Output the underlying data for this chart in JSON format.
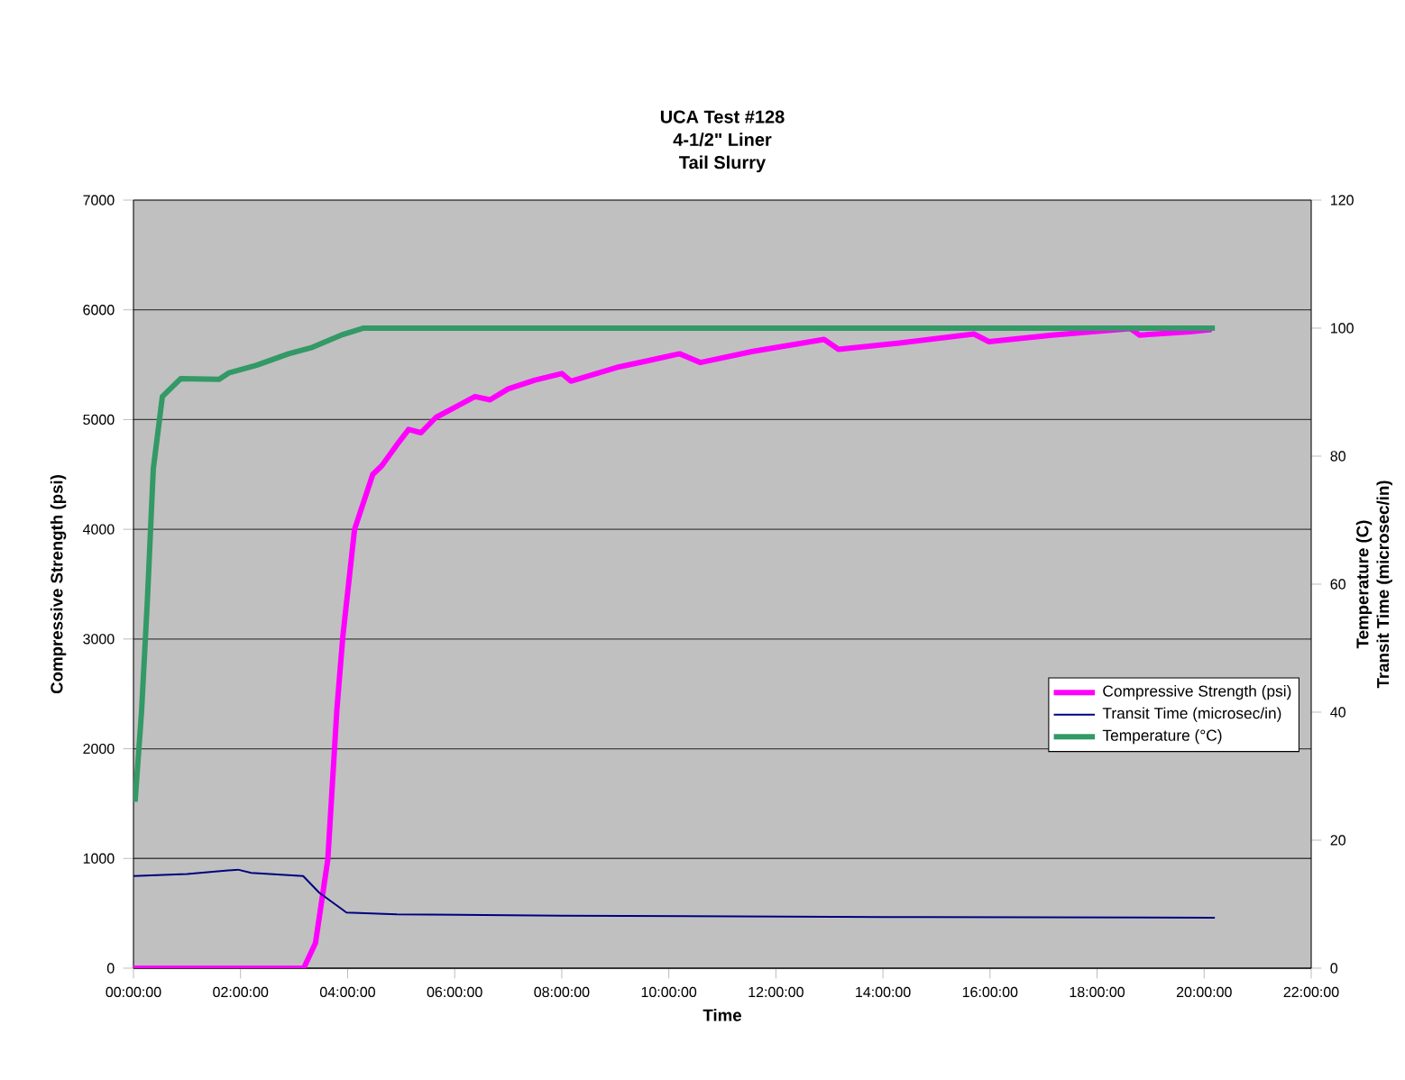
{
  "chart_data": {
    "type": "line",
    "title": "UCA Test #128",
    "subtitle": "4-1/2\" Liner Tail Slurry",
    "xlabel": "Time",
    "ylabel": "Compressive Strength (psi)",
    "y2label": "Temperature (C) Transit Time (microsec/in)",
    "xlim": [
      0,
      22
    ],
    "xticks": [
      {
        "value": 0,
        "label": "00:00:00"
      },
      {
        "value": 2,
        "label": "02:00:00"
      },
      {
        "value": 4,
        "label": "04:00:00"
      },
      {
        "value": 6,
        "label": "06:00:00"
      },
      {
        "value": 8,
        "label": "08:00:00"
      },
      {
        "value": 10,
        "label": "10:00:00"
      },
      {
        "value": 12,
        "label": "12:00:00"
      },
      {
        "value": 14,
        "label": "14:00:00"
      },
      {
        "value": 16,
        "label": "16:00:00"
      },
      {
        "value": 18,
        "label": "18:00:00"
      },
      {
        "value": 20,
        "label": "20:00:00"
      },
      {
        "value": 22,
        "label": "22:00:00"
      }
    ],
    "ylim": [
      0,
      7000
    ],
    "yticks": [
      0,
      1000,
      2000,
      3000,
      4000,
      5000,
      6000,
      7000
    ],
    "y2lim": [
      0,
      120
    ],
    "y2ticks": [
      0,
      20,
      40,
      60,
      80,
      100,
      120
    ],
    "grid": "y",
    "legend": "right",
    "marker": "none",
    "line_style": "solid",
    "series": [
      {
        "name": "Compressive Strength (psi)",
        "color": "#ff00ff",
        "x": [
          0,
          1,
          2,
          3.18,
          3.4,
          3.63,
          3.8,
          3.91,
          4.13,
          4.47,
          4.64,
          4.92,
          5.14,
          5.37,
          5.65,
          6.38,
          6.66,
          7.0,
          7.5,
          8.0,
          8.17,
          9.07,
          9.64,
          10.2,
          10.59,
          11.55,
          12.9,
          13.17,
          14.35,
          15.7,
          15.98,
          17.16,
          18.62,
          18.79,
          19.74,
          20.14
        ],
        "values": [
          0,
          0,
          0,
          0,
          230,
          990,
          2360,
          3020,
          4000,
          4500,
          4580,
          4770,
          4910,
          4880,
          5020,
          5210,
          5180,
          5280,
          5360,
          5420,
          5350,
          5480,
          5540,
          5600,
          5520,
          5620,
          5730,
          5640,
          5700,
          5780,
          5710,
          5770,
          5830,
          5770,
          5800,
          5820
        ]
      },
      {
        "name": "Transit Time (microsec/in)",
        "color": "#000080",
        "axis": "y2",
        "x": [
          0,
          1,
          1.95,
          2.2,
          3.17,
          3.47,
          3.98,
          4.92,
          8,
          14,
          20.2
        ],
        "values": [
          14.4,
          14.7,
          15.4,
          14.9,
          14.4,
          11.8,
          8.7,
          8.4,
          8.2,
          8.0,
          7.9
        ]
      },
      {
        "name": "Temperature (°C)",
        "color": "#339966",
        "axis": "y2",
        "x": [
          0.03,
          0.15,
          0.26,
          0.37,
          0.54,
          0.88,
          1.6,
          1.78,
          2.3,
          2.9,
          3.34,
          3.91,
          4.3,
          20.2
        ],
        "values": [
          26,
          40,
          57.5,
          78,
          89.3,
          92.1,
          92,
          93,
          94.2,
          96,
          97,
          99,
          100,
          100
        ]
      }
    ]
  }
}
